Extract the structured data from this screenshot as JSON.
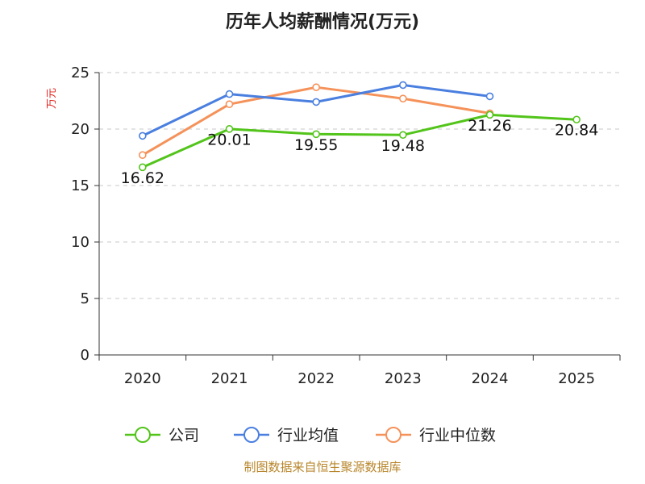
{
  "chart_data": {
    "type": "line",
    "title": "历年人均薪酬情况(万元)",
    "ylabel": "万元",
    "xlabel": "",
    "categories": [
      "2020",
      "2021",
      "2022",
      "2023",
      "2024",
      "2025"
    ],
    "ylim": [
      0,
      25
    ],
    "yticks": [
      0,
      5,
      10,
      15,
      20,
      25
    ],
    "grid": true,
    "legend_position": "bottom",
    "series": [
      {
        "name": "公司",
        "color": "#52c41a",
        "values": [
          16.62,
          20.01,
          19.55,
          19.48,
          21.26,
          20.84
        ],
        "labels": [
          "16.62",
          "20.01",
          "19.55",
          "19.48",
          "21.26",
          "20.84"
        ]
      },
      {
        "name": "行业均值",
        "color": "#4a7fe0",
        "values": [
          19.4,
          23.1,
          22.4,
          23.9,
          22.9,
          null
        ]
      },
      {
        "name": "行业中位数",
        "color": "#f5925a",
        "values": [
          17.7,
          22.2,
          23.7,
          22.7,
          21.4,
          null
        ]
      }
    ]
  },
  "source": "制图数据来自恒生聚源数据库"
}
